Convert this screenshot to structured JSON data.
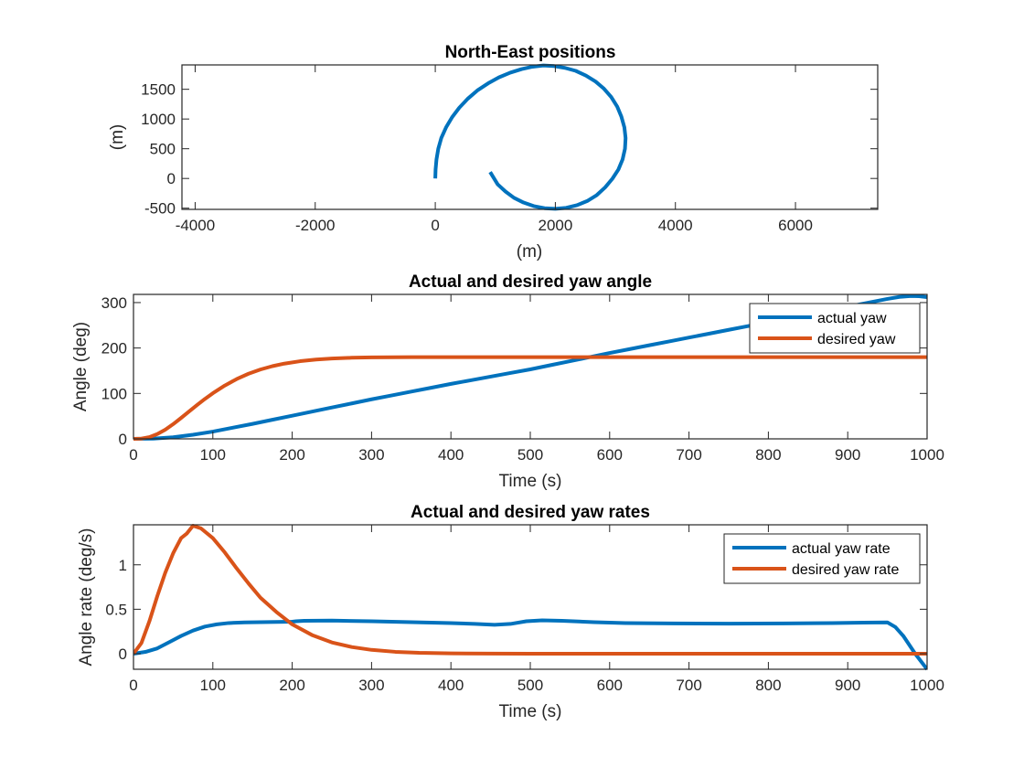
{
  "chart_data": [
    {
      "type": "line",
      "title": "North-East positions",
      "xlabel": "(m)",
      "ylabel": "(m)",
      "xlim": [
        -4220,
        7370
      ],
      "ylim": [
        -520,
        1910
      ],
      "xticks": [
        -4000,
        -2000,
        0,
        2000,
        4000,
        6000
      ],
      "xtick_labels": [
        "-4000",
        "-2000",
        "0",
        "2000",
        "4000",
        "6000"
      ],
      "yticks": [
        -500,
        0,
        500,
        1000,
        1500
      ],
      "ytick_labels": [
        "-500",
        "0",
        "500",
        "1000",
        "1500"
      ],
      "grid": false,
      "legend": null,
      "series": [
        {
          "name": "trajectory",
          "color": "#0072BD",
          "x": [
            0,
            5,
            20,
            50,
            100,
            180,
            280,
            400,
            540,
            700,
            880,
            1060,
            1250,
            1440,
            1620,
            1800,
            1980,
            2160,
            2340,
            2510,
            2670,
            2810,
            2930,
            3030,
            3100,
            3150,
            3170,
            3160,
            3120,
            3050,
            2950,
            2830,
            2690,
            2530,
            2360,
            2180,
            2000,
            1820,
            1640,
            1470,
            1310,
            1170,
            1040,
            914
          ],
          "y": [
            0,
            150,
            320,
            500,
            680,
            860,
            1030,
            1190,
            1340,
            1480,
            1600,
            1700,
            1780,
            1840,
            1880,
            1900,
            1890,
            1860,
            1810,
            1730,
            1630,
            1510,
            1370,
            1210,
            1040,
            860,
            680,
            500,
            320,
            150,
            -5,
            -150,
            -280,
            -380,
            -450,
            -495,
            -510,
            -500,
            -465,
            -405,
            -325,
            -220,
            -100,
            107
          ]
        }
      ]
    },
    {
      "type": "line",
      "title": "Actual and desired yaw angle",
      "xlabel": "Time (s)",
      "ylabel": "Angle (deg)",
      "xlim": [
        0,
        1000
      ],
      "ylim": [
        0,
        318
      ],
      "xticks": [
        0,
        100,
        200,
        300,
        400,
        500,
        600,
        700,
        800,
        900,
        1000
      ],
      "xtick_labels": [
        "0",
        "100",
        "200",
        "300",
        "400",
        "500",
        "600",
        "700",
        "800",
        "900",
        "1000"
      ],
      "yticks": [
        0,
        100,
        200,
        300
      ],
      "ytick_labels": [
        "0",
        "100",
        "200",
        "300"
      ],
      "grid": false,
      "legend": "top-right",
      "series": [
        {
          "name": "actual yaw",
          "color": "#0072BD",
          "x": [
            0,
            25,
            50,
            75,
            100,
            125,
            150,
            175,
            200,
            225,
            250,
            275,
            300,
            325,
            350,
            375,
            400,
            425,
            450,
            475,
            500,
            525,
            550,
            575,
            600,
            625,
            650,
            675,
            700,
            725,
            750,
            775,
            800,
            825,
            850,
            875,
            900,
            925,
            950,
            965,
            980,
            990,
            1000
          ],
          "y": [
            0,
            0.6,
            3.5,
            9,
            16,
            24.5,
            33,
            42,
            51,
            60,
            69,
            78,
            87,
            95.5,
            104,
            112.5,
            121,
            129,
            137,
            145,
            153,
            162,
            171,
            180,
            189,
            197.5,
            206,
            214.5,
            223,
            231.5,
            240,
            248.5,
            257,
            265.5,
            274,
            282.5,
            291,
            299.5,
            308,
            312.5,
            314.5,
            314,
            312
          ]
        },
        {
          "name": "desired yaw",
          "color": "#D95319",
          "x": [
            0,
            10,
            20,
            30,
            40,
            50,
            60,
            70,
            80,
            90,
            100,
            115,
            130,
            145,
            160,
            175,
            190,
            210,
            230,
            250,
            275,
            300,
            350,
            400,
            500,
            600,
            700,
            800,
            900,
            1000
          ],
          "y": [
            0,
            0.6,
            3.9,
            10.5,
            20.2,
            32.4,
            46.0,
            60.2,
            74.3,
            87.9,
            100.5,
            117.3,
            131.6,
            143.4,
            152.7,
            160.0,
            165.6,
            171.0,
            174.6,
            176.8,
            178.5,
            179.3,
            179.9,
            180,
            180,
            180,
            180,
            180,
            180,
            180
          ]
        }
      ]
    },
    {
      "type": "line",
      "title": "Actual and desired yaw rates",
      "xlabel": "Time (s)",
      "ylabel": "Angle rate (deg/s)",
      "xlim": [
        0,
        1000
      ],
      "ylim": [
        -0.175,
        1.45
      ],
      "xticks": [
        0,
        100,
        200,
        300,
        400,
        500,
        600,
        700,
        800,
        900,
        1000
      ],
      "xtick_labels": [
        "0",
        "100",
        "200",
        "300",
        "400",
        "500",
        "600",
        "700",
        "800",
        "900",
        "1000"
      ],
      "yticks": [
        0,
        0.5,
        1
      ],
      "ytick_labels": [
        "0",
        "0.5",
        "1"
      ],
      "grid": false,
      "legend": "top-right",
      "series": [
        {
          "name": "actual yaw rate",
          "color": "#0072BD",
          "x": [
            0,
            15,
            30,
            45,
            60,
            75,
            90,
            105,
            120,
            140,
            160,
            180,
            200,
            205,
            215,
            250,
            300,
            350,
            400,
            430,
            455,
            475,
            495,
            515,
            540,
            580,
            620,
            680,
            750,
            820,
            880,
            920,
            950,
            960,
            970,
            985,
            1000
          ],
          "y": [
            0,
            0.02,
            0.06,
            0.13,
            0.2,
            0.26,
            0.305,
            0.33,
            0.345,
            0.352,
            0.355,
            0.357,
            0.36,
            0.365,
            0.37,
            0.372,
            0.365,
            0.355,
            0.345,
            0.335,
            0.325,
            0.335,
            0.365,
            0.375,
            0.37,
            0.355,
            0.345,
            0.34,
            0.338,
            0.34,
            0.345,
            0.35,
            0.352,
            0.3,
            0.2,
            0.0,
            -0.175
          ]
        },
        {
          "name": "desired yaw rate",
          "color": "#D95319",
          "x": [
            0,
            10,
            20,
            30,
            40,
            50,
            60,
            67,
            75,
            85,
            100,
            115,
            130,
            145,
            160,
            180,
            200,
            225,
            250,
            275,
            300,
            330,
            360,
            400,
            450,
            500,
            600,
            700,
            800,
            900,
            1000
          ],
          "y": [
            0,
            0.12,
            0.364,
            0.648,
            0.91,
            1.13,
            1.3,
            1.35,
            1.44,
            1.41,
            1.3,
            1.14,
            0.96,
            0.79,
            0.63,
            0.47,
            0.33,
            0.21,
            0.127,
            0.075,
            0.043,
            0.021,
            0.01,
            0.004,
            0.001,
            0,
            0,
            0,
            0,
            0,
            0
          ]
        }
      ]
    }
  ]
}
